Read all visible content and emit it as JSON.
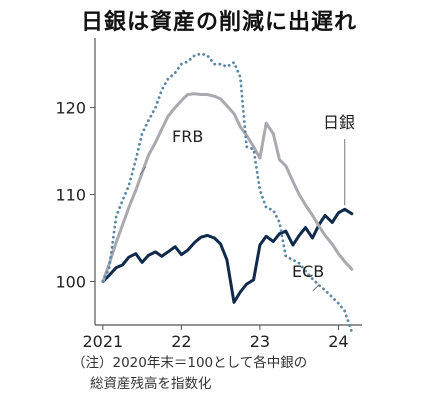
{
  "chart_data": {
    "type": "line",
    "title": "日銀は資産の削減に出遅れ",
    "note": [
      "（注）2020年末＝100として各中銀の",
      "総資産残高を指数化"
    ],
    "xlabel": "",
    "ylabel": "",
    "x_ticks": [
      "2021",
      "22",
      "23",
      "24"
    ],
    "x_tick_values": [
      2021,
      2022,
      2023,
      2024
    ],
    "xlim": [
      2020.9,
      2024.3
    ],
    "y_ticks": [
      100,
      110,
      120
    ],
    "ylim": [
      95,
      128
    ],
    "grid": false,
    "series": [
      {
        "name": "日銀",
        "color": "#0f2a4a",
        "dash": "solid",
        "width": 3,
        "x": [
          2021.0,
          2021.08,
          2021.17,
          2021.25,
          2021.33,
          2021.42,
          2021.5,
          2021.58,
          2021.67,
          2021.75,
          2021.83,
          2021.92,
          2022.0,
          2022.08,
          2022.17,
          2022.25,
          2022.33,
          2022.42,
          2022.5,
          2022.58,
          2022.67,
          2022.75,
          2022.83,
          2022.92,
          2023.0,
          2023.08,
          2023.17,
          2023.25,
          2023.33,
          2023.42,
          2023.5,
          2023.58,
          2023.67,
          2023.75,
          2023.83,
          2023.92,
          2024.0,
          2024.08,
          2024.17
        ],
        "values": [
          100.0,
          100.7,
          101.6,
          101.9,
          102.8,
          103.2,
          102.2,
          103.0,
          103.4,
          102.9,
          103.4,
          104.0,
          103.1,
          103.6,
          104.5,
          105.1,
          105.3,
          105.0,
          104.3,
          102.5,
          97.6,
          98.8,
          99.7,
          100.2,
          104.2,
          105.2,
          104.6,
          105.5,
          105.8,
          104.2,
          105.3,
          106.2,
          105.0,
          106.5,
          107.6,
          106.8,
          107.9,
          108.3,
          107.8
        ]
      },
      {
        "name": "FRB",
        "color": "#a9a9b0",
        "dash": "solid",
        "width": 3,
        "x": [
          2021.0,
          2021.08,
          2021.17,
          2021.25,
          2021.33,
          2021.42,
          2021.5,
          2021.58,
          2021.67,
          2021.75,
          2021.83,
          2021.92,
          2022.0,
          2022.08,
          2022.17,
          2022.25,
          2022.33,
          2022.42,
          2022.5,
          2022.58,
          2022.67,
          2022.75,
          2022.83,
          2022.92,
          2023.0,
          2023.08,
          2023.17,
          2023.25,
          2023.33,
          2023.42,
          2023.5,
          2023.58,
          2023.67,
          2023.75,
          2023.83,
          2023.92,
          2024.0,
          2024.08,
          2024.17
        ],
        "values": [
          100.0,
          102.0,
          104.5,
          106.5,
          108.5,
          110.5,
          112.5,
          114.5,
          116.0,
          117.5,
          119.0,
          120.0,
          120.8,
          121.5,
          121.6,
          121.5,
          121.5,
          121.3,
          121.0,
          120.2,
          119.3,
          117.8,
          116.8,
          115.5,
          114.2,
          118.2,
          117.0,
          114.0,
          113.3,
          111.5,
          110.0,
          108.8,
          107.6,
          106.4,
          105.3,
          104.3,
          103.2,
          102.3,
          101.4
        ]
      },
      {
        "name": "ECB",
        "color": "#5b86a6",
        "dash": "dotted",
        "width": 2.8,
        "x": [
          2021.0,
          2021.08,
          2021.17,
          2021.25,
          2021.33,
          2021.42,
          2021.5,
          2021.58,
          2021.67,
          2021.75,
          2021.83,
          2021.92,
          2022.0,
          2022.08,
          2022.17,
          2022.25,
          2022.33,
          2022.42,
          2022.5,
          2022.58,
          2022.67,
          2022.75,
          2022.83,
          2022.92,
          2023.0,
          2023.08,
          2023.17,
          2023.25,
          2023.33,
          2023.42,
          2023.5,
          2023.58,
          2023.67,
          2023.75,
          2023.83,
          2023.92,
          2024.0,
          2024.08,
          2024.17
        ],
        "values": [
          100.0,
          101.5,
          107.5,
          109.3,
          111.0,
          114.0,
          117.0,
          118.5,
          120.0,
          122.0,
          123.3,
          124.0,
          125.0,
          125.3,
          126.0,
          126.2,
          126.0,
          125.0,
          125.0,
          124.7,
          125.2,
          123.5,
          115.5,
          115.2,
          110.5,
          108.5,
          108.2,
          106.8,
          102.9,
          102.5,
          102.1,
          101.2,
          100.3,
          99.6,
          99.0,
          98.2,
          97.5,
          96.6,
          94.2
        ]
      }
    ],
    "colors": {
      "axis": "#555555",
      "text": "#222222"
    }
  }
}
